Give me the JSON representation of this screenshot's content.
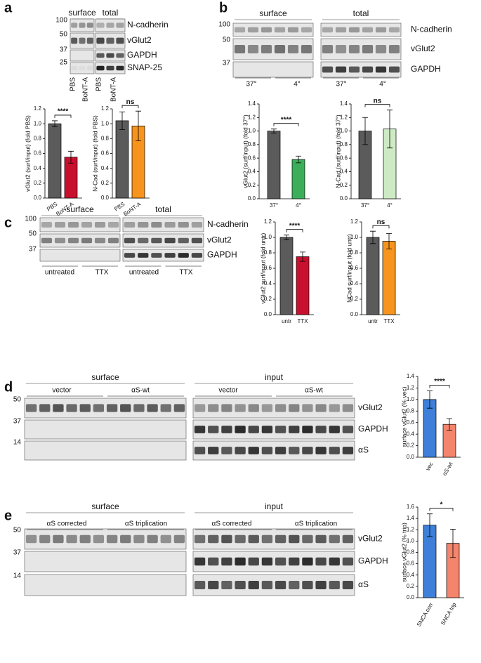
{
  "panels": [
    {
      "letter": "a",
      "blot": {
        "headers": [
          "surface",
          "total"
        ],
        "markers": [
          "100",
          "50",
          "37",
          "25"
        ],
        "rows": [
          "N-cadherin",
          "vGlut2",
          "GAPDH",
          "SNAP-25"
        ],
        "lanes": [
          "PBS",
          "BoNT-A",
          "PBS",
          "BoNT-A"
        ]
      },
      "charts": [
        {
          "type": "bar",
          "ylabel": "vGlut2 (surf/input) (fold PBS)",
          "categories": [
            "PBS",
            "BoNT-A"
          ],
          "values": [
            1,
            0.55
          ],
          "errors": [
            0.04,
            0.08
          ],
          "colors": [
            "#5b5b5b",
            "#c8102e"
          ],
          "ylim": [
            0,
            1.2
          ],
          "yticks": [
            {
              "value": 0,
              "label": "0.0"
            },
            0.2,
            0.4,
            0.6,
            0.8,
            {
              "value": 1,
              "label": "1.0"
            },
            1.2
          ],
          "significance": "****"
        },
        {
          "type": "bar",
          "ylabel": "N-Cad (surf/input) (fold PBS)",
          "categories": [
            "PBS",
            "BoNT-A"
          ],
          "values": [
            1.04,
            0.97
          ],
          "errors": [
            0.12,
            0.2
          ],
          "colors": [
            "#5b5b5b",
            "#f7941d"
          ],
          "ylim": [
            0,
            1.2
          ],
          "yticks": [
            {
              "value": 0,
              "label": "0.0"
            },
            0.2,
            0.4,
            0.6,
            0.8,
            {
              "value": 1,
              "label": "1.0"
            },
            1.2
          ],
          "significance": "ns"
        }
      ]
    },
    {
      "letter": "b",
      "blot": {
        "headers": [
          "surface",
          "total"
        ],
        "markers": [
          "100",
          "50",
          "37"
        ],
        "rows": [
          "N-cadherin",
          "vGlut2",
          "GAPDH"
        ],
        "lanes": [
          "37°",
          "4°",
          "37°",
          "4°"
        ]
      },
      "charts": [
        {
          "type": "bar",
          "ylabel": "vGlut2 (surf/input) (fold 37°)",
          "categories": [
            "37°",
            "4°"
          ],
          "values": [
            1,
            0.58
          ],
          "errors": [
            0.03,
            0.05
          ],
          "colors": [
            "#5b5b5b",
            "#3cae5a"
          ],
          "ylim": [
            0,
            1.4
          ],
          "yticks": [
            {
              "value": 0,
              "label": "0.0"
            },
            0.2,
            0.4,
            0.6,
            0.8,
            {
              "value": 1,
              "label": "1.0"
            },
            1.2,
            1.4
          ],
          "significance": "****"
        },
        {
          "type": "bar",
          "ylabel": "N-Cad (surf/input) (fold 37°)",
          "categories": [
            "37°",
            "4°"
          ],
          "values": [
            1,
            1.03
          ],
          "errors": [
            0.2,
            0.28
          ],
          "colors": [
            "#5b5b5b",
            "#cdeac4"
          ],
          "ylim": [
            0,
            1.4
          ],
          "yticks": [
            {
              "value": 0,
              "label": "0.0"
            },
            0.2,
            0.4,
            0.6,
            0.8,
            {
              "value": 1,
              "label": "1.0"
            },
            1.2,
            1.4
          ],
          "significance": "ns"
        }
      ]
    },
    {
      "letter": "c",
      "blot": {
        "headers": [
          "surface",
          "total"
        ],
        "markers": [
          "100",
          "50",
          "37"
        ],
        "rows": [
          "N-cadherin",
          "vGlut2",
          "GAPDH"
        ],
        "lanes": [
          "untreated",
          "TTX",
          "untreated",
          "TTX"
        ]
      },
      "charts": [
        {
          "type": "bar",
          "ylabel": "vGlut2 surf/input (fold untr)",
          "categories": [
            "untr",
            "TTX"
          ],
          "values": [
            1,
            0.75
          ],
          "errors": [
            0.03,
            0.06
          ],
          "colors": [
            "#5b5b5b",
            "#c8102e"
          ],
          "ylim": [
            0,
            1.2
          ],
          "yticks": [
            {
              "value": 0,
              "label": "0.0"
            },
            0.2,
            0.4,
            0.6,
            0.8,
            {
              "value": 1,
              "label": "1.0"
            },
            1.2
          ],
          "significance": "****"
        },
        {
          "type": "bar",
          "ylabel": "NCad surf/input (fold untr)",
          "categories": [
            "untr",
            "TTX"
          ],
          "values": [
            1,
            0.95
          ],
          "errors": [
            0.08,
            0.1
          ],
          "colors": [
            "#5b5b5b",
            "#f7941d"
          ],
          "ylim": [
            0,
            1.2
          ],
          "yticks": [
            {
              "value": 0,
              "label": "0.0"
            },
            0.2,
            0.4,
            0.6,
            0.8,
            {
              "value": 1,
              "label": "1.0"
            },
            1.2
          ],
          "significance": "ns"
        }
      ]
    },
    {
      "letter": "d",
      "blot": {
        "headers": [
          "surface",
          "input"
        ],
        "markers": [
          "50",
          "37",
          "14"
        ],
        "rows": [
          "vGlut2",
          "GAPDH",
          "αS"
        ],
        "lanes": [
          "vector",
          "αS-wt",
          "vector",
          "αS-wt"
        ]
      },
      "charts": [
        {
          "type": "bar",
          "ylabel": "surface vGlut2 (% vec)",
          "categories": [
            "vec",
            "αS-wt"
          ],
          "values": [
            1,
            0.57
          ],
          "errors": [
            0.15,
            0.1
          ],
          "colors": [
            "#3d7fd9",
            "#f4846c"
          ],
          "ylim": [
            0,
            1.4
          ],
          "yticks": [
            {
              "value": 0,
              "label": "0.0"
            },
            0.2,
            0.4,
            0.6,
            0.8,
            {
              "value": 1,
              "label": "1.0"
            },
            1.2,
            1.4
          ],
          "significance": "****"
        }
      ]
    },
    {
      "letter": "e",
      "blot": {
        "headers": [
          "surface",
          "input"
        ],
        "markers": [
          "50",
          "37",
          "14"
        ],
        "rows": [
          "vGlut2",
          "GAPDH",
          "αS"
        ],
        "lanes": [
          "αS corrected",
          "αS triplication",
          "αS corrected",
          "αS triplication"
        ]
      },
      "charts": [
        {
          "type": "bar",
          "ylabel": "surface vGlut2 (% trip)",
          "categories": [
            "SNCA corr",
            "SNCA trip"
          ],
          "values": [
            1.28,
            0.96
          ],
          "errors": [
            0.2,
            0.25
          ],
          "colors": [
            "#3d7fd9",
            "#f4846c"
          ],
          "ylim": [
            0,
            1.6
          ],
          "yticks": [
            {
              "value": 0,
              "label": "0.0"
            },
            0.2,
            0.4,
            0.6,
            0.8,
            {
              "value": 1,
              "label": "1.0"
            },
            1.2,
            1.4,
            1.6
          ],
          "significance": "*"
        }
      ]
    }
  ]
}
